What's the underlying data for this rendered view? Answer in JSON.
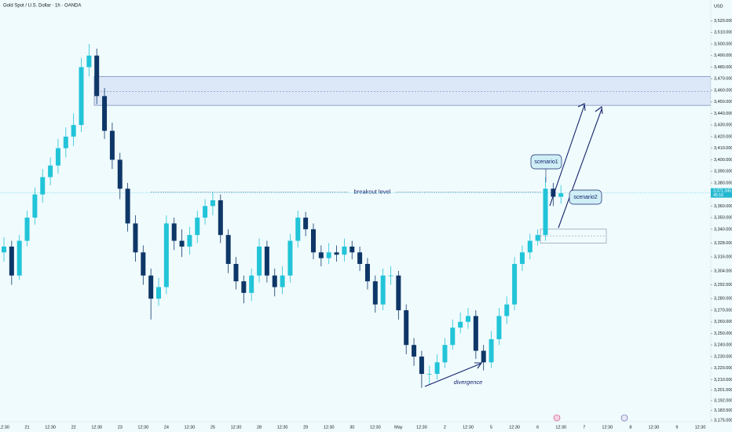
{
  "chart_data": {
    "type": "candlestick",
    "title": "Gold Spot / U.S. Dollar · 1h · OANDA",
    "currency": "USD",
    "categories": [
      "12:30",
      "21",
      "12:30",
      "22",
      "12:30",
      "23",
      "12:30",
      "24",
      "12:30",
      "25",
      "12:30",
      "28",
      "12:30",
      "29",
      "12:30",
      "30",
      "12:30",
      "May",
      "12:30",
      "2",
      "12:30",
      "5",
      "12:30",
      "6",
      "12:30",
      "7",
      "12:30",
      "8",
      "12:30",
      "9",
      "12:30"
    ],
    "open": [
      3320,
      3325,
      3300,
      3330,
      3350,
      3370,
      3385,
      3395,
      3410,
      3420,
      3430,
      3480,
      3490,
      3455,
      3425,
      3400,
      3375,
      3345,
      3320,
      3300,
      3280,
      3290,
      3345,
      3330,
      3325,
      3335,
      3350,
      3360,
      3365,
      3335,
      3310,
      3295,
      3285,
      3300,
      3325,
      3300,
      3290,
      3300,
      3330,
      3350,
      3340,
      3320,
      3315,
      3320,
      3318,
      3325,
      3320,
      3310,
      3295,
      3275,
      3300,
      3300,
      3270,
      3240,
      3230,
      3215,
      3215,
      3225,
      3240,
      3255,
      3260,
      3265,
      3235,
      3225,
      3245,
      3265,
      3275,
      3310,
      3320,
      3330,
      3335,
      3375,
      3368
    ],
    "high": [
      3333,
      3330,
      3335,
      3356,
      3376,
      3392,
      3402,
      3418,
      3428,
      3440,
      3488,
      3500,
      3496,
      3462,
      3432,
      3406,
      3380,
      3352,
      3326,
      3306,
      3298,
      3352,
      3350,
      3340,
      3342,
      3356,
      3366,
      3372,
      3370,
      3340,
      3316,
      3300,
      3306,
      3332,
      3330,
      3306,
      3308,
      3336,
      3356,
      3355,
      3345,
      3326,
      3328,
      3326,
      3332,
      3330,
      3325,
      3315,
      3300,
      3306,
      3308,
      3304,
      3275,
      3246,
      3235,
      3222,
      3232,
      3246,
      3262,
      3268,
      3272,
      3270,
      3240,
      3252,
      3272,
      3282,
      3316,
      3326,
      3336,
      3340,
      3385,
      3380,
      3378
    ],
    "low": [
      3312,
      3292,
      3296,
      3325,
      3344,
      3363,
      3378,
      3388,
      3402,
      3412,
      3424,
      3472,
      3448,
      3418,
      3392,
      3366,
      3338,
      3312,
      3292,
      3262,
      3274,
      3284,
      3322,
      3316,
      3318,
      3328,
      3344,
      3352,
      3328,
      3302,
      3288,
      3276,
      3278,
      3294,
      3294,
      3282,
      3284,
      3294,
      3324,
      3334,
      3314,
      3308,
      3310,
      3312,
      3312,
      3314,
      3304,
      3288,
      3268,
      3270,
      3292,
      3262,
      3232,
      3222,
      3203,
      3206,
      3210,
      3220,
      3236,
      3250,
      3254,
      3228,
      3218,
      3220,
      3240,
      3258,
      3270,
      3304,
      3314,
      3326,
      3330,
      3360,
      3362
    ],
    "close": [
      3325,
      3300,
      3330,
      3350,
      3370,
      3385,
      3395,
      3410,
      3420,
      3430,
      3480,
      3490,
      3455,
      3425,
      3400,
      3375,
      3345,
      3320,
      3300,
      3280,
      3290,
      3345,
      3330,
      3325,
      3335,
      3350,
      3360,
      3365,
      3335,
      3310,
      3295,
      3285,
      3300,
      3325,
      3300,
      3290,
      3300,
      3330,
      3350,
      3340,
      3320,
      3315,
      3320,
      3318,
      3325,
      3320,
      3310,
      3295,
      3275,
      3300,
      3300,
      3270,
      3240,
      3230,
      3215,
      3215,
      3225,
      3240,
      3255,
      3260,
      3265,
      3235,
      3225,
      3245,
      3265,
      3275,
      3310,
      3320,
      3330,
      3335,
      3375,
      3368,
      3371
    ],
    "up_color": "#22c4d8",
    "down_color": "#0e3768",
    "ylim": [
      3175,
      3538
    ],
    "yticks": [
      {
        "value": 3520,
        "label": "3,520.000"
      },
      {
        "value": 3510,
        "label": "3,510.000"
      },
      {
        "value": 3500,
        "label": "3,500.000"
      },
      {
        "value": 3490,
        "label": "3,490.000"
      },
      {
        "value": 3480,
        "label": "3,480.000"
      },
      {
        "value": 3470,
        "label": "3,470.000"
      },
      {
        "value": 3460,
        "label": "3,460.000"
      },
      {
        "value": 3450,
        "label": "3,450.000"
      },
      {
        "value": 3440,
        "label": "3,440.000"
      },
      {
        "value": 3430,
        "label": "3,430.000"
      },
      {
        "value": 3420,
        "label": "3,420.000"
      },
      {
        "value": 3410,
        "label": "3,410.000"
      },
      {
        "value": 3400,
        "label": "3,400.000"
      },
      {
        "value": 3390,
        "label": "3,390.000"
      },
      {
        "value": 3380,
        "label": "3,380.000"
      },
      {
        "value": 3360,
        "label": "3,360.000"
      },
      {
        "value": 3350,
        "label": "3,350.000"
      },
      {
        "value": 3340,
        "label": "3,340.000"
      },
      {
        "value": 3328,
        "label": "3,328.000"
      },
      {
        "value": 3316,
        "label": "3,316.000"
      },
      {
        "value": 3304,
        "label": "3,304.000"
      },
      {
        "value": 3292,
        "label": "3,292.000"
      },
      {
        "value": 3280,
        "label": "3,280.000"
      },
      {
        "value": 3270,
        "label": "3,270.000"
      },
      {
        "value": 3260,
        "label": "3,260.000"
      },
      {
        "value": 3250,
        "label": "3,250.000"
      },
      {
        "value": 3240,
        "label": "3,240.000"
      },
      {
        "value": 3230,
        "label": "3,230.000"
      },
      {
        "value": 3220,
        "label": "3,220.000"
      },
      {
        "value": 3210,
        "label": "3,210.000"
      },
      {
        "value": 3201,
        "label": "3,201.000"
      },
      {
        "value": 3192,
        "label": "3,192.000"
      },
      {
        "value": 3183.5,
        "label": "3,183.500"
      },
      {
        "value": 3175,
        "label": "3,175.000"
      }
    ],
    "current_price": {
      "value": 3371.345,
      "label": "3,371.345"
    },
    "countdown": "45:16",
    "annotations": {
      "breakout": {
        "text": "breakout level",
        "value": 3372
      },
      "zone": {
        "top": 3472,
        "mid": 3459,
        "bottom": 3447
      },
      "box": {
        "top": 3340,
        "mid": 3334,
        "bottom": 3328
      },
      "scenario1": "scenario1",
      "scenario2": "scenario2",
      "divergence": "divergence"
    }
  }
}
